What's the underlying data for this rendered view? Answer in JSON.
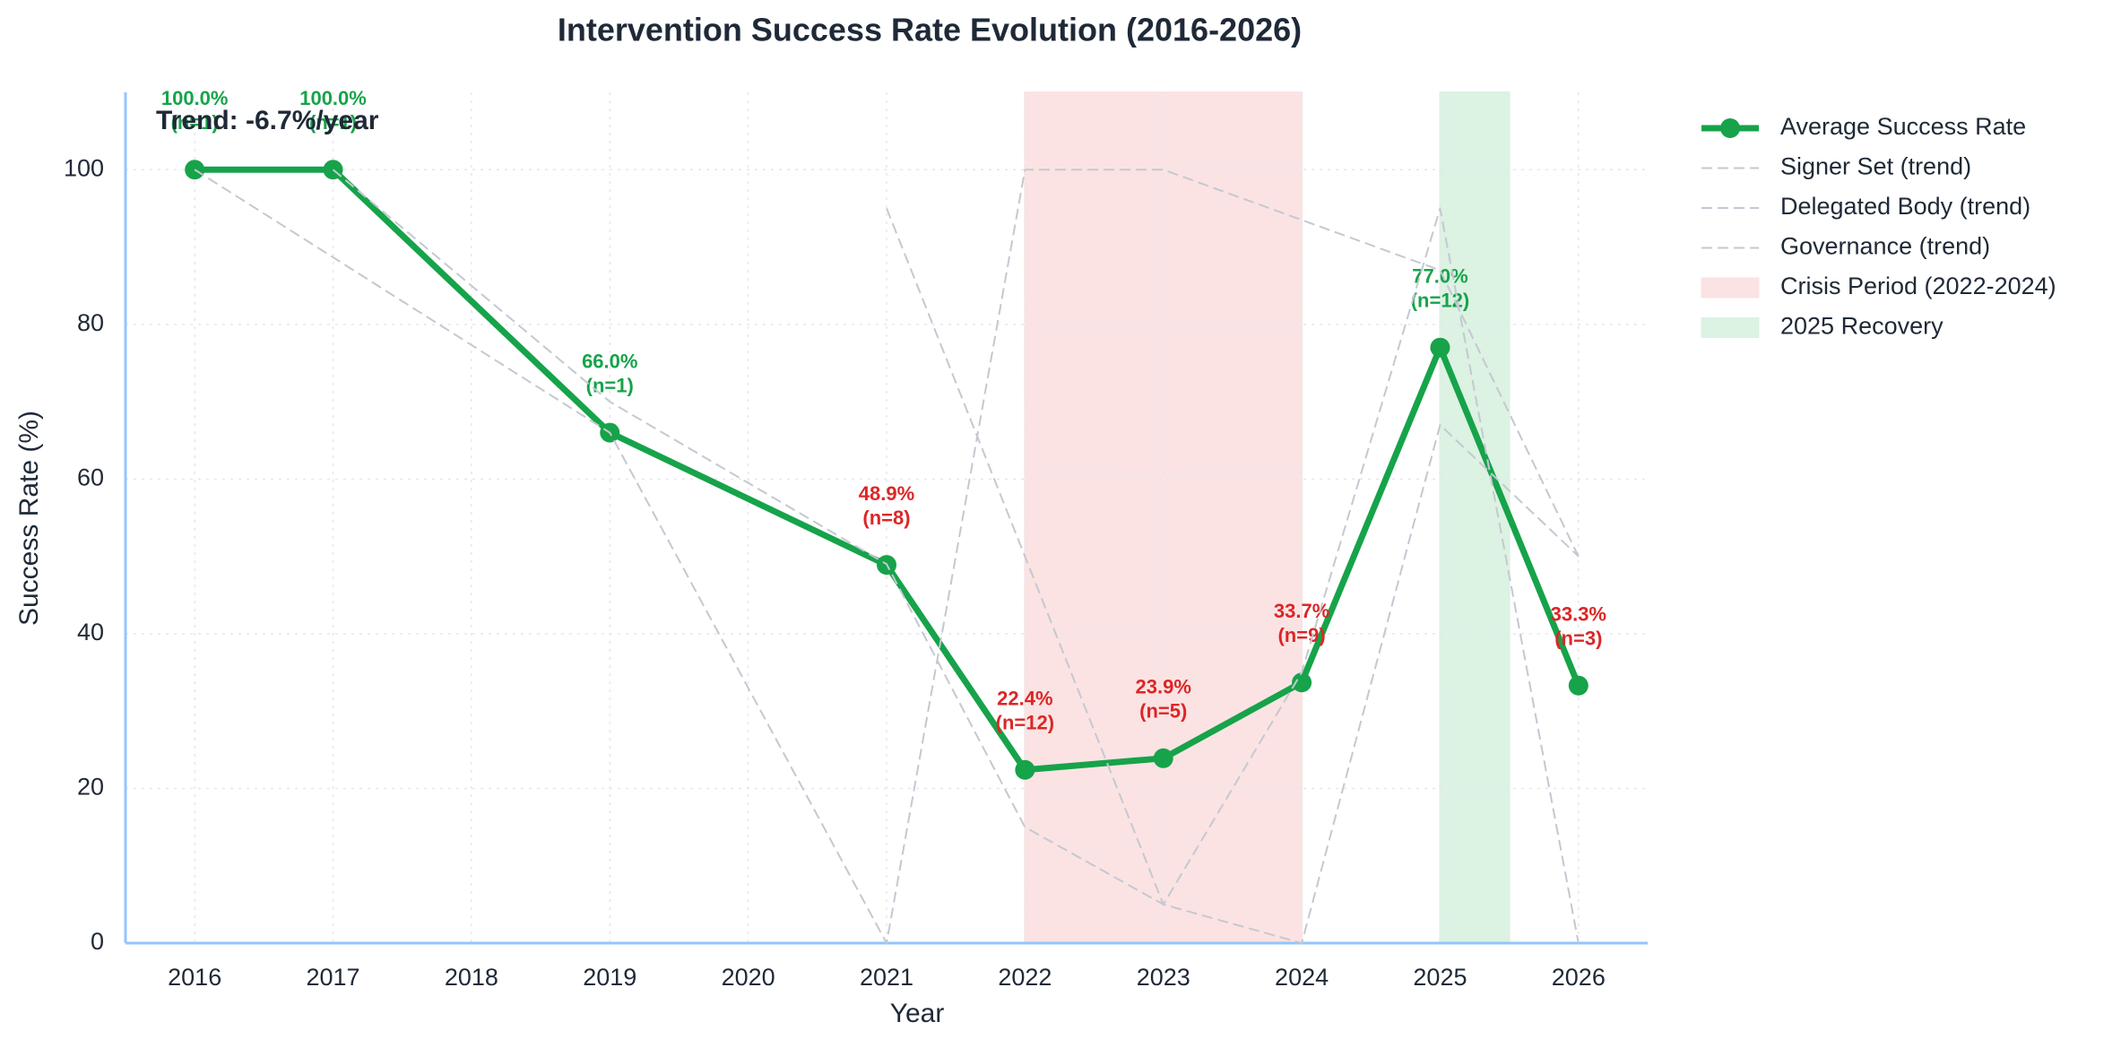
{
  "chart_data": {
    "type": "line",
    "title": "Intervention Success Rate Evolution (2016-2026)",
    "x_label": "Year",
    "y_label": "Success Rate (%)",
    "annotation": "Trend: -6.7%/year",
    "xlim": [
      2015.5,
      2026.5
    ],
    "xticks": [
      2016,
      2017,
      2018,
      2019,
      2020,
      2021,
      2022,
      2023,
      2024,
      2025,
      2026
    ],
    "ylim": [
      0,
      110
    ],
    "yticks": [
      0,
      20,
      40,
      60,
      80,
      100
    ],
    "grid": true,
    "legend": "outside right",
    "series": [
      {
        "name": "Average Success Rate",
        "color": "#16a34a",
        "x": [
          2016,
          2017,
          2019,
          2021,
          2022,
          2023,
          2024,
          2025,
          2026
        ],
        "values": [
          100,
          100,
          66,
          48.9,
          22.4,
          23.9,
          33.7,
          77,
          33.3
        ],
        "value_labels": [
          "100.0%",
          "100.0%",
          "66.0%",
          "48.9%",
          "22.4%",
          "23.9%",
          "33.7%",
          "77.0%",
          "33.3%"
        ],
        "count_labels": [
          "(n=1)",
          "(n=1)",
          "(n=1)",
          "(n=8)",
          "(n=12)",
          "(n=5)",
          "(n=9)",
          "(n=12)",
          "(n=3)"
        ],
        "label_colors": [
          "#16a34a",
          "#16a34a",
          "#16a34a",
          "#dc2626",
          "#dc2626",
          "#dc2626",
          "#dc2626",
          "#16a34a",
          "#dc2626"
        ]
      },
      {
        "name": "Signer Set (trend)",
        "color": "#c4c8d2",
        "dashed": true,
        "x": [
          2016,
          2019,
          2021,
          2022,
          2023,
          2025,
          2026
        ],
        "values": [
          100,
          66,
          0,
          100,
          100,
          87,
          50
        ]
      },
      {
        "name": "Delegated Body (trend)",
        "color": "#c4c8d2",
        "dashed": true,
        "x": [
          2017,
          2019,
          2021,
          2022,
          2023,
          2024,
          2025,
          2026
        ],
        "values": [
          100,
          70,
          49,
          15,
          5,
          0,
          67,
          50
        ]
      },
      {
        "name": "Governance (trend)",
        "color": "#c4c8d2",
        "dashed": true,
        "x": [
          2021,
          2022,
          2023,
          2024,
          2025,
          2026
        ],
        "values": [
          95,
          50,
          5,
          35,
          95,
          0
        ]
      }
    ],
    "regions": [
      {
        "name": "Crisis Period (2022-2024)",
        "start": 2022,
        "end": 2024,
        "color": "#fbe3e3"
      },
      {
        "name": "2025 Recovery",
        "start": 2025,
        "end": 2025.5,
        "color": "#dcf2e2"
      }
    ]
  }
}
